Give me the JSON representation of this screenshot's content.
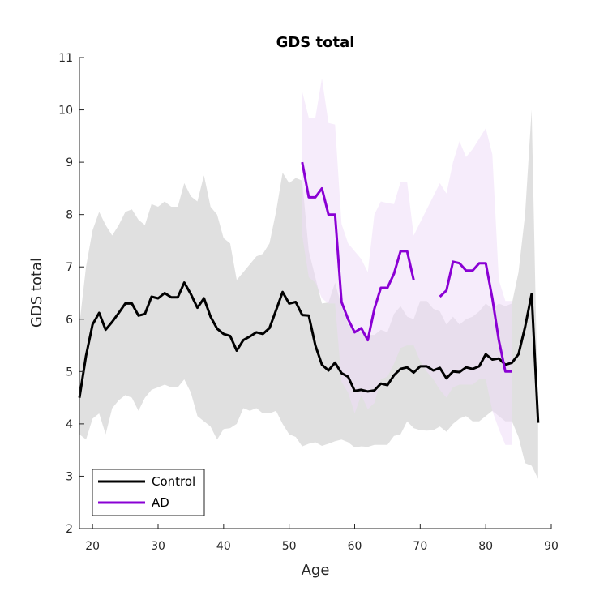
{
  "chart_data": {
    "type": "line",
    "title": "GDS total",
    "xlabel": "Age",
    "ylabel": "GDS total",
    "xlim": [
      18,
      90
    ],
    "ylim": [
      2,
      11
    ],
    "xticks": [
      20,
      30,
      40,
      50,
      60,
      70,
      80,
      90
    ],
    "yticks": [
      2,
      3,
      4,
      5,
      6,
      7,
      8,
      9,
      10,
      11
    ],
    "grid": false,
    "legend_position": "bottom-left",
    "series": [
      {
        "name": "Control",
        "color": "#000000",
        "band_color": "#cccccc",
        "x": [
          18,
          19,
          20,
          21,
          22,
          23,
          24,
          25,
          26,
          27,
          28,
          29,
          30,
          31,
          32,
          33,
          34,
          35,
          36,
          37,
          38,
          39,
          40,
          41,
          42,
          43,
          44,
          45,
          46,
          47,
          48,
          49,
          50,
          51,
          52,
          53,
          54,
          55,
          56,
          57,
          58,
          59,
          60,
          61,
          62,
          63,
          64,
          65,
          66,
          67,
          68,
          69,
          70,
          71,
          72,
          73,
          74,
          75,
          76,
          77,
          78,
          79,
          80,
          81,
          82,
          83,
          84,
          85,
          86,
          87,
          88
        ],
        "values": [
          4.5,
          5.3,
          5.9,
          6.12,
          5.8,
          5.95,
          6.12,
          6.3,
          6.3,
          6.07,
          6.1,
          6.43,
          6.4,
          6.5,
          6.42,
          6.42,
          6.7,
          6.48,
          6.22,
          6.4,
          6.05,
          5.82,
          5.72,
          5.68,
          5.4,
          5.6,
          5.67,
          5.75,
          5.72,
          5.83,
          6.17,
          6.52,
          6.3,
          6.33,
          6.08,
          6.07,
          5.5,
          5.13,
          5.02,
          5.17,
          4.97,
          4.9,
          4.63,
          4.65,
          4.62,
          4.64,
          4.77,
          4.74,
          4.93,
          5.05,
          5.08,
          4.98,
          5.1,
          5.1,
          5.02,
          5.07,
          4.87,
          5.0,
          4.99,
          5.08,
          5.05,
          5.1,
          5.33,
          5.23,
          5.25,
          5.13,
          5.17,
          5.33,
          5.85,
          6.48,
          4.02
        ],
        "lower": [
          3.8,
          3.7,
          4.1,
          4.2,
          3.8,
          4.3,
          4.45,
          4.55,
          4.5,
          4.25,
          4.5,
          4.65,
          4.7,
          4.75,
          4.7,
          4.7,
          4.85,
          4.6,
          4.15,
          4.05,
          3.95,
          3.7,
          3.9,
          3.92,
          4.0,
          4.3,
          4.25,
          4.3,
          4.2,
          4.2,
          4.25,
          4.0,
          3.8,
          3.75,
          3.57,
          3.62,
          3.65,
          3.58,
          3.62,
          3.67,
          3.7,
          3.65,
          3.55,
          3.57,
          3.56,
          3.6,
          3.6,
          3.6,
          3.77,
          3.8,
          4.05,
          3.92,
          3.88,
          3.87,
          3.88,
          3.95,
          3.85,
          4.0,
          4.1,
          4.15,
          4.05,
          4.05,
          4.15,
          4.25,
          4.15,
          4.05,
          4.05,
          3.75,
          3.25,
          3.2,
          2.95
        ],
        "upper": [
          5.9,
          7.0,
          7.7,
          8.05,
          7.8,
          7.6,
          7.8,
          8.05,
          8.1,
          7.9,
          7.8,
          8.2,
          8.15,
          8.25,
          8.15,
          8.15,
          8.6,
          8.35,
          8.25,
          8.75,
          8.15,
          8.0,
          7.55,
          7.45,
          6.75,
          6.9,
          7.05,
          7.2,
          7.25,
          7.45,
          8.05,
          8.8,
          8.6,
          8.7,
          8.65,
          7.3,
          6.8,
          6.3,
          6.32,
          6.7,
          6.25,
          5.9,
          5.75,
          5.75,
          5.7,
          5.7,
          5.8,
          5.75,
          6.1,
          6.25,
          6.05,
          6.0,
          6.35,
          6.35,
          6.2,
          6.15,
          5.9,
          6.05,
          5.9,
          6.0,
          6.05,
          6.15,
          6.3,
          6.2,
          6.3,
          6.25,
          6.3,
          6.9,
          8.0,
          10.0,
          4.02
        ]
      },
      {
        "name": "AD",
        "color": "#8a00d4",
        "band_color": "#eedcf7",
        "x": [
          52,
          53,
          54,
          55,
          56,
          57,
          58,
          59,
          60,
          61,
          62,
          63,
          64,
          65,
          66,
          67,
          68,
          69,
          70,
          71,
          72,
          73,
          74,
          75,
          76,
          77,
          78,
          79,
          80,
          81,
          82,
          83,
          84
        ],
        "values": [
          9.0,
          8.33,
          8.33,
          8.5,
          8.0,
          8.0,
          6.33,
          6.0,
          5.75,
          5.83,
          5.6,
          6.2,
          6.6,
          6.6,
          6.87,
          7.3,
          7.3,
          6.75,
          null,
          null,
          null,
          6.43,
          6.55,
          7.1,
          7.07,
          6.93,
          6.93,
          7.07,
          7.07,
          6.4,
          5.6,
          5.0,
          5.0
        ],
        "lower": [
          7.6,
          6.8,
          6.7,
          6.4,
          6.3,
          6.3,
          4.8,
          4.6,
          4.2,
          4.55,
          4.28,
          4.4,
          4.85,
          4.9,
          5.15,
          5.45,
          5.5,
          5.5,
          5.2,
          5.0,
          4.85,
          4.65,
          4.5,
          4.7,
          4.75,
          4.75,
          4.75,
          4.85,
          4.85,
          4.25,
          3.9,
          3.6,
          3.6
        ],
        "upper": [
          10.35,
          9.85,
          9.85,
          10.6,
          9.75,
          9.72,
          7.82,
          7.45,
          7.3,
          7.15,
          6.9,
          8.0,
          8.25,
          8.22,
          8.2,
          8.62,
          8.62,
          7.6,
          7.85,
          8.1,
          8.35,
          8.6,
          8.4,
          9.0,
          9.4,
          9.1,
          9.25,
          9.45,
          9.65,
          9.15,
          6.75,
          6.35,
          6.35
        ]
      }
    ]
  }
}
